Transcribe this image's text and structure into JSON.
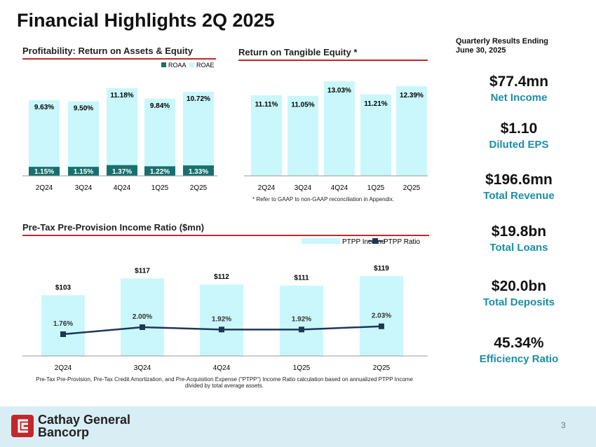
{
  "title": "Financial Highlights 2Q 2025",
  "quarter_header": [
    "Quarterly Results Ending",
    "June 30, 2025"
  ],
  "colors": {
    "light": "#c9f7fb",
    "teal": "#17706e",
    "navy": "#1f3657",
    "accent": "#1a8fa8",
    "red": "#c0282d"
  },
  "kpis": [
    {
      "value": "$77.4mn",
      "label": "Net Income"
    },
    {
      "value": "$1.10",
      "label": "Diluted EPS"
    },
    {
      "value": "$196.6mn",
      "label": "Total Revenue"
    },
    {
      "value": "$19.8bn",
      "label": "Total Loans"
    },
    {
      "value": "$20.0bn",
      "label": "Total Deposits"
    },
    {
      "value": "45.34%",
      "label": "Efficiency Ratio"
    }
  ],
  "notes": {
    "rote": "* Refer to GAAP to non-GAAP reconciliation in Appendix.",
    "ptpp": "Pre-Tax Pre-Provision, Pre-Tax Credit Amortization, and Pre-Acquisition Expense (\"PTPP\") Income Ratio calculation based on annualized PTPP Income divided by total average assets."
  },
  "logo": {
    "name_line1": "Cathay General",
    "name_line2": "Bancorp"
  },
  "page_number": "3",
  "chart_data": [
    {
      "type": "bar",
      "title": "Profitability: Return on Assets & Equity",
      "categories": [
        "2Q24",
        "3Q24",
        "4Q24",
        "1Q25",
        "2Q25"
      ],
      "series": [
        {
          "name": "ROAA",
          "values": [
            1.15,
            1.15,
            1.37,
            1.22,
            1.33
          ],
          "labels": [
            "1.15%",
            "1.15%",
            "1.37%",
            "1.22%",
            "1.33%"
          ]
        },
        {
          "name": "ROAE",
          "values": [
            9.63,
            9.5,
            11.18,
            9.84,
            10.72
          ],
          "labels": [
            "9.63%",
            "9.50%",
            "11.18%",
            "9.84%",
            "10.72%"
          ]
        }
      ],
      "legend": "top-right",
      "grid": false
    },
    {
      "type": "bar",
      "title": "Return on Tangible Equity *",
      "categories": [
        "2Q24",
        "3Q24",
        "4Q24",
        "1Q25",
        "2Q25"
      ],
      "values": [
        11.11,
        11.05,
        13.03,
        11.21,
        12.39
      ],
      "labels": [
        "11.11%",
        "11.05%",
        "13.03%",
        "11.21%",
        "12.39%"
      ],
      "grid": false
    },
    {
      "type": "bar",
      "title": "Pre-Tax Pre-Provision Income Ratio ($mn)",
      "categories": [
        "2Q24",
        "3Q24",
        "4Q24",
        "1Q25",
        "2Q25"
      ],
      "series": [
        {
          "name": "PTPP Income",
          "type": "bar",
          "values": [
            103,
            117,
            112,
            111,
            119
          ],
          "labels": [
            "$103",
            "$117",
            "$112",
            "$111",
            "$119"
          ]
        },
        {
          "name": "PTPP Ratio",
          "type": "line",
          "values": [
            1.76,
            2.0,
            1.92,
            1.92,
            2.03
          ],
          "labels": [
            "1.76%",
            "2.00%",
            "1.92%",
            "1.92%",
            "2.03%"
          ]
        }
      ],
      "legend": "top-right",
      "grid": false
    }
  ]
}
